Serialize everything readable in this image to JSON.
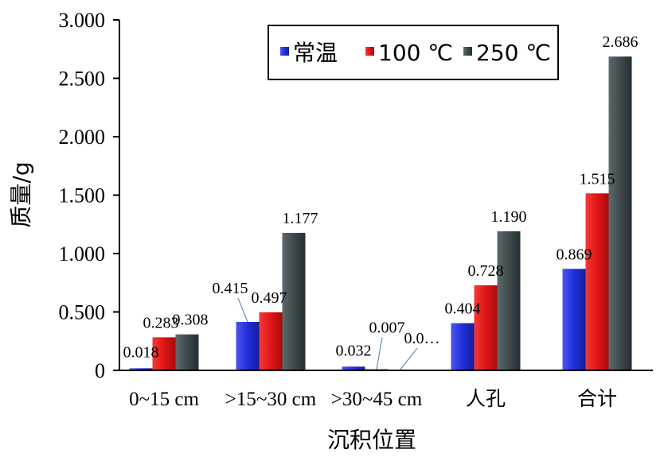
{
  "chart_data": {
    "type": "bar",
    "categories": [
      "0~15 cm",
      ">15~30 cm",
      ">30~45 cm",
      "人孔",
      "合计"
    ],
    "series": [
      {
        "name": "常温",
        "color": "#1f2fd8",
        "values": [
          0.018,
          0.415,
          0.032,
          0.404,
          0.869
        ],
        "labels": [
          "0.018",
          "0.415",
          "0.032",
          "0.404",
          "0.869"
        ]
      },
      {
        "name": "100 ℃",
        "color": "#e01515",
        "values": [
          0.283,
          0.497,
          0.007,
          0.728,
          1.515
        ],
        "labels": [
          "0.283",
          "0.497",
          "0.007",
          "0.728",
          "1.515"
        ]
      },
      {
        "name": "250 ℃",
        "color": "#3e4a4c",
        "values": [
          0.308,
          1.177,
          0.0,
          1.19,
          2.686
        ],
        "labels": [
          "0.308",
          "1.177",
          "0.0…",
          "1.190",
          "2.686"
        ]
      }
    ],
    "xlabel": "沉积位置",
    "ylabel": "质量/g",
    "ylim": [
      0,
      3.0
    ],
    "yticks": [
      "0",
      "0.500",
      "1.000",
      "1.500",
      "2.000",
      "2.500",
      "3.000"
    ],
    "ytick_values": [
      0,
      0.5,
      1.0,
      1.5,
      2.0,
      2.5,
      3.0
    ],
    "grid": false,
    "legend_position": "top-right"
  }
}
